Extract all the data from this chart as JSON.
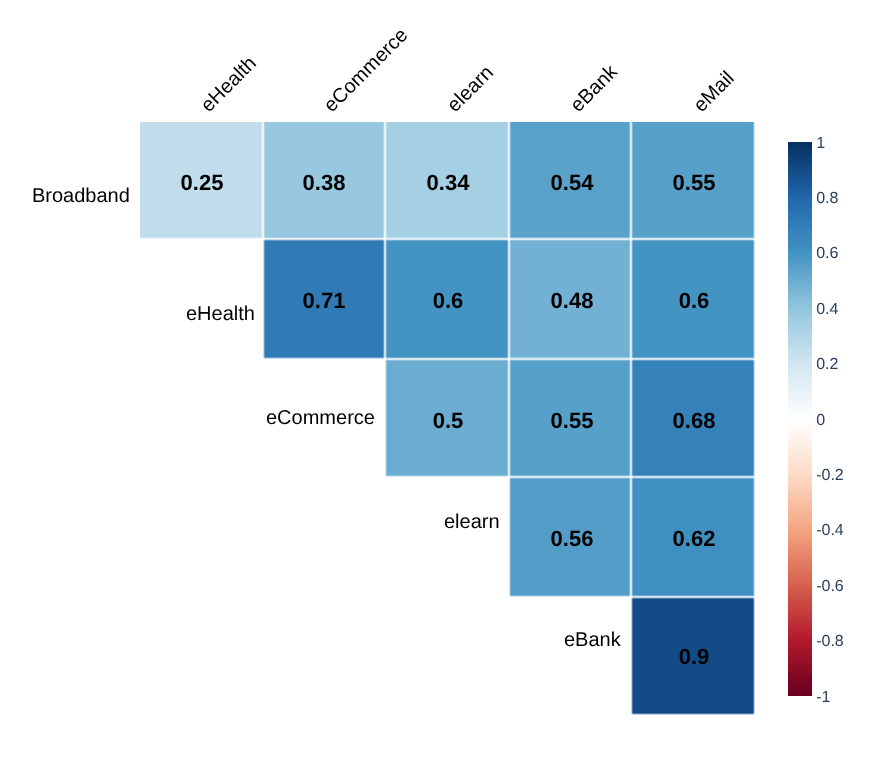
{
  "chart_data": {
    "type": "heatmap",
    "categories": [
      "eHealth",
      "eCommerce",
      "elearn",
      "eBank",
      "eMail"
    ],
    "y_categories": [
      "Broadband",
      "eHealth",
      "eCommerce",
      "elearn",
      "eBank"
    ],
    "cells": [
      [
        0.25,
        0.38,
        0.34,
        0.54,
        0.55
      ],
      [
        null,
        0.71,
        0.6,
        0.48,
        0.6
      ],
      [
        null,
        null,
        0.5,
        0.55,
        0.68
      ],
      [
        null,
        null,
        null,
        0.56,
        0.62
      ],
      [
        null,
        null,
        null,
        null,
        0.9
      ]
    ],
    "clim": [
      -1,
      1
    ],
    "cticks": [
      -1,
      -0.8,
      -0.6,
      -0.4,
      -0.2,
      0,
      0.2,
      0.4,
      0.6,
      0.8,
      1
    ],
    "data_labels": true
  }
}
